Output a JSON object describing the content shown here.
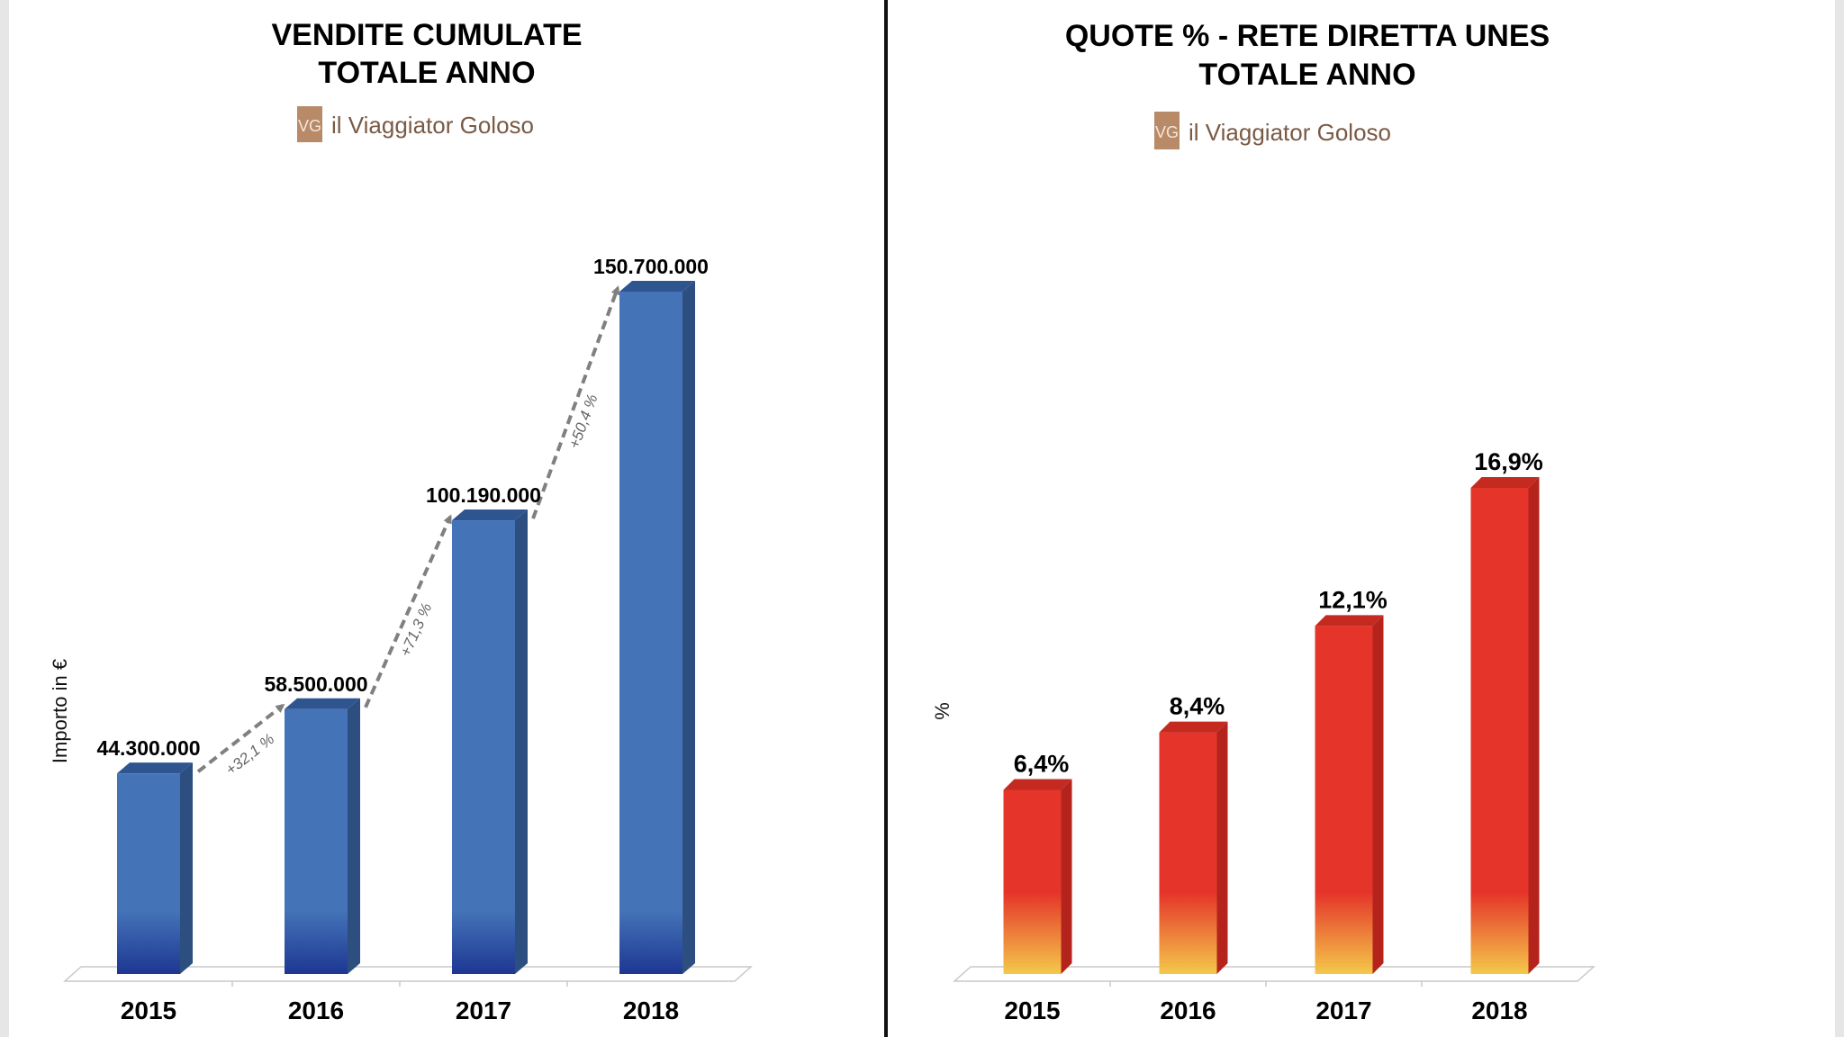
{
  "chart_data": [
    {
      "type": "bar",
      "title": "VENDITE CUMULATE\nTOTALE ANNO",
      "logo": {
        "mark": "VG",
        "text": "il Viaggiator Goloso"
      },
      "ylabel": "Importo in €",
      "categories": [
        "2015",
        "2016",
        "2017",
        "2018"
      ],
      "values": [
        44300000,
        58500000,
        100190000,
        150700000
      ],
      "value_labels": [
        "44.300.000",
        "58.500.000",
        "100.190.000",
        "150.700.000"
      ],
      "growth_labels": [
        "+32,1 %",
        "+71,3 %",
        "+50,4 %"
      ],
      "ylim": [
        0,
        150700000
      ],
      "grid": false,
      "colors": {
        "front": "#4473b8",
        "side": "#2c4f7f",
        "top": "#2f5590",
        "base": "#1e3792"
      }
    },
    {
      "type": "bar",
      "title": "QUOTE % - RETE DIRETTA UNES\nTOTALE ANNO",
      "logo": {
        "mark": "VG",
        "text": "il Viaggiator Goloso"
      },
      "ylabel": "%",
      "categories": [
        "2015",
        "2016",
        "2017",
        "2018"
      ],
      "values": [
        6.4,
        8.4,
        12.1,
        16.9
      ],
      "value_labels": [
        "6,4%",
        "8,4%",
        "12,1%",
        "16,9%"
      ],
      "ylim": [
        0,
        16.9
      ],
      "grid": false,
      "colors": {
        "front": "#e5352a",
        "side": "#b5241c",
        "top": "#c42a20",
        "base": "#f4c84a"
      }
    }
  ],
  "colors": {
    "divider": "#111111",
    "logo_mark": "#b98a68",
    "logo_text": "#7a5a45"
  }
}
